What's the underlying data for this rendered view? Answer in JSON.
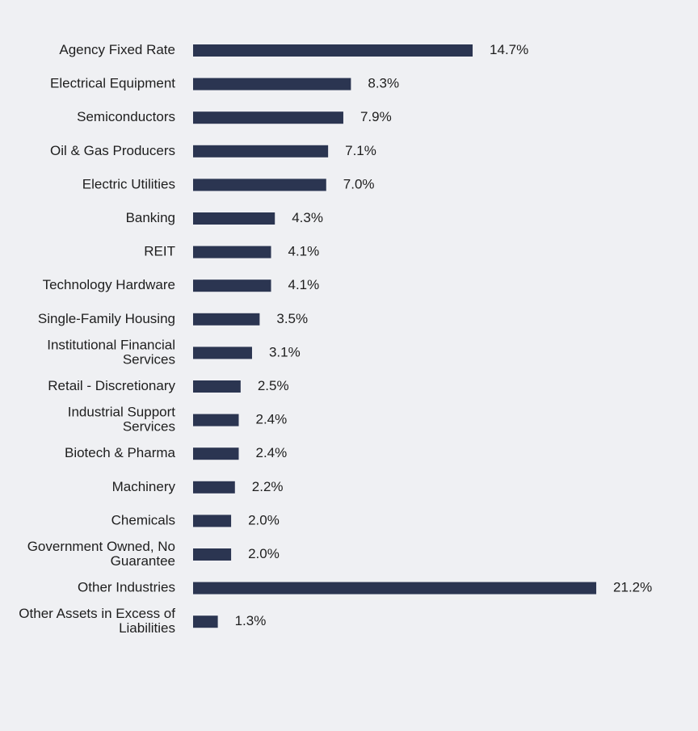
{
  "chart_data": {
    "type": "bar",
    "orientation": "horizontal",
    "title": "",
    "xlabel": "",
    "ylabel": "",
    "grid": false,
    "legend": "none",
    "value_suffix": "%",
    "categories": [
      "Agency Fixed Rate",
      "Electrical Equipment",
      "Semiconductors",
      "Oil & Gas Producers",
      "Electric Utilities",
      "Banking",
      "REIT",
      "Technology Hardware",
      "Single-Family Housing",
      "Institutional Financial Services",
      "Retail - Discretionary",
      "Industrial Support Services",
      "Biotech & Pharma",
      "Machinery",
      "Chemicals",
      "Government Owned, No Guarantee",
      "Other Industries",
      "Other Assets in Excess of Liabilities"
    ],
    "values": [
      14.7,
      8.3,
      7.9,
      7.1,
      7.0,
      4.3,
      4.1,
      4.1,
      3.5,
      3.1,
      2.5,
      2.4,
      2.4,
      2.2,
      2.0,
      2.0,
      21.2,
      1.3
    ],
    "data_labels": [
      "14.7%",
      "8.3%",
      "7.9%",
      "7.1%",
      "7.0%",
      "4.3%",
      "4.1%",
      "4.1%",
      "3.5%",
      "3.1%",
      "2.5%",
      "2.4%",
      "2.4%",
      "2.2%",
      "2.0%",
      "2.0%",
      "21.2%",
      "1.3%"
    ],
    "label_lines": [
      [
        "Agency Fixed Rate"
      ],
      [
        "Electrical Equipment"
      ],
      [
        "Semiconductors"
      ],
      [
        "Oil & Gas Producers"
      ],
      [
        "Electric Utilities"
      ],
      [
        "Banking"
      ],
      [
        "REIT"
      ],
      [
        "Technology Hardware"
      ],
      [
        "Single-Family Housing"
      ],
      [
        "Institutional Financial",
        "Services"
      ],
      [
        "Retail - Discretionary"
      ],
      [
        "Industrial Support",
        "Services"
      ],
      [
        "Biotech & Pharma"
      ],
      [
        "Machinery"
      ],
      [
        "Chemicals"
      ],
      [
        "Government Owned, No",
        "Guarantee"
      ],
      [
        "Other Industries"
      ],
      [
        "Other Assets in Excess of",
        "Liabilities"
      ]
    ],
    "colors": {
      "bar": "#2b3551",
      "text": "#1e1e1e",
      "background": "#eff0f3"
    }
  }
}
